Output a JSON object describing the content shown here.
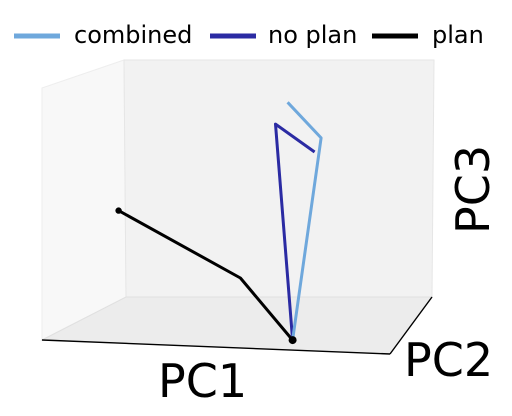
{
  "chart_data": {
    "type": "line",
    "projection": "3d",
    "xlabel": "PC1",
    "ylabel": "PC2",
    "zlabel": "PC3",
    "grid": false,
    "legend": "top",
    "series": [
      {
        "name": "combined",
        "color": "#6fa8dc",
        "points": [
          {
            "x": 0.72,
            "y": 0.0,
            "z": 0.04
          },
          {
            "x": 0.79,
            "y": 0.1,
            "z": 0.83
          },
          {
            "x": 0.69,
            "y": 0.13,
            "z": 0.96
          }
        ]
      },
      {
        "name": "no plan",
        "color": "#2b2ba3",
        "points": [
          {
            "x": 0.72,
            "y": 0.0,
            "z": 0.04
          },
          {
            "x": 0.66,
            "y": 0.09,
            "z": 0.88
          },
          {
            "x": 0.77,
            "y": 0.11,
            "z": 0.77
          }
        ]
      },
      {
        "name": "plan",
        "color": "#000000",
        "start_marker": true,
        "end_marker": true,
        "points": [
          {
            "x": 0.72,
            "y": 0.0,
            "z": 0.04
          },
          {
            "x": 0.57,
            "y": 0.0,
            "z": 0.28
          },
          {
            "x": 0.22,
            "y": 0.0,
            "z": 0.53
          }
        ]
      }
    ]
  }
}
